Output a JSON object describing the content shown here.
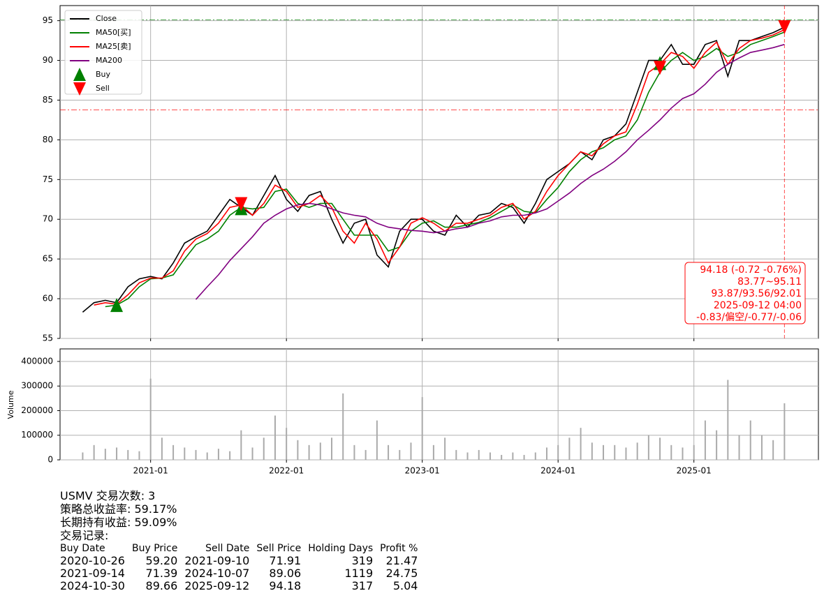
{
  "chart_data": [
    {
      "type": "line",
      "x": [
        "2020-07",
        "2020-08",
        "2020-09",
        "2020-10",
        "2020-11",
        "2020-12",
        "2021-01",
        "2021-02",
        "2021-03",
        "2021-04",
        "2021-05",
        "2021-06",
        "2021-07",
        "2021-08",
        "2021-09",
        "2021-10",
        "2021-11",
        "2021-12",
        "2022-01",
        "2022-02",
        "2022-03",
        "2022-04",
        "2022-05",
        "2022-06",
        "2022-07",
        "2022-08",
        "2022-09",
        "2022-10",
        "2022-11",
        "2022-12",
        "2023-01",
        "2023-02",
        "2023-03",
        "2023-04",
        "2023-05",
        "2023-06",
        "2023-07",
        "2023-08",
        "2023-09",
        "2023-10",
        "2023-11",
        "2023-12",
        "2024-01",
        "2024-02",
        "2024-03",
        "2024-04",
        "2024-05",
        "2024-06",
        "2024-07",
        "2024-08",
        "2024-09",
        "2024-10",
        "2024-11",
        "2024-12",
        "2025-01",
        "2025-02",
        "2025-03",
        "2025-04",
        "2025-05",
        "2025-06",
        "2025-07",
        "2025-08",
        "2025-09"
      ],
      "xlim": [
        "2020-05",
        "2025-12"
      ],
      "ylim": [
        55,
        96.9
      ],
      "yticks": [
        55,
        60,
        65,
        70,
        75,
        80,
        85,
        90,
        95
      ],
      "grid": true,
      "legend": "upper left",
      "series": [
        {
          "name": "Close",
          "color": "#000000",
          "values": [
            58.3,
            59.5,
            59.8,
            59.5,
            61.5,
            62.5,
            62.8,
            62.5,
            64.5,
            67,
            67.8,
            68.5,
            70.5,
            72.5,
            71.5,
            70.5,
            73,
            75.5,
            72.5,
            71,
            73,
            73.5,
            70,
            67,
            69.5,
            70,
            65.5,
            64,
            68.5,
            70,
            70,
            68.5,
            68,
            70.5,
            69,
            70.5,
            70.8,
            72,
            71.5,
            69.5,
            72,
            75,
            76,
            77,
            78.5,
            77.5,
            80,
            80.5,
            82,
            86,
            90,
            90,
            92,
            89.5,
            89.5,
            92,
            92.5,
            88,
            92.5,
            92.5,
            93,
            93.5,
            94.18
          ]
        },
        {
          "name": "MA50[买]",
          "color": "#008000",
          "values": [
            null,
            null,
            59,
            59.2,
            60,
            61.5,
            62.5,
            62.6,
            63,
            65,
            66.8,
            67.5,
            68.5,
            70.5,
            71.5,
            71.3,
            71.5,
            73.5,
            73.8,
            72,
            71.5,
            72,
            72,
            70,
            68,
            68,
            68,
            66,
            66.5,
            68.5,
            69.5,
            69.8,
            69,
            69,
            69.3,
            69.6,
            70.2,
            71,
            71.8,
            71,
            70.8,
            72.5,
            74,
            76,
            77.5,
            78.5,
            79,
            80,
            80.5,
            82.5,
            86,
            88.5,
            90,
            91,
            90,
            90.5,
            91.5,
            90.5,
            91,
            92,
            92.5,
            93,
            93.56
          ]
        },
        {
          "name": "MA25[卖]",
          "color": "#ff0000",
          "values": [
            null,
            59.2,
            59.5,
            59.3,
            60.5,
            62,
            62.6,
            62.6,
            63.5,
            66,
            67.5,
            68.2,
            69.5,
            71.5,
            71.8,
            70.5,
            72,
            74.3,
            73.5,
            71.5,
            72,
            73,
            71.5,
            68.5,
            67,
            69.5,
            67.5,
            64.5,
            66.5,
            69.5,
            70.2,
            69.5,
            68.5,
            69.5,
            69.5,
            70,
            70.5,
            71.5,
            72,
            70,
            71,
            73.5,
            75.5,
            77,
            78.5,
            78,
            79.5,
            80.5,
            81,
            84.5,
            88.5,
            89.5,
            91,
            90.5,
            89,
            91,
            92.3,
            89.5,
            91.5,
            92.5,
            92.8,
            93.2,
            93.87
          ]
        },
        {
          "name": "MA200",
          "color": "#800080",
          "values": [
            null,
            null,
            null,
            null,
            null,
            null,
            null,
            null,
            null,
            null,
            59.9,
            61.5,
            63,
            64.8,
            66.3,
            67.8,
            69.5,
            70.5,
            71.3,
            71.8,
            72,
            71.8,
            71.3,
            70.8,
            70.5,
            70.3,
            69.5,
            69,
            68.8,
            68.6,
            68.5,
            68.3,
            68.5,
            68.8,
            69,
            69.5,
            69.8,
            70.3,
            70.5,
            70.5,
            70.8,
            71.3,
            72.3,
            73.3,
            74.5,
            75.5,
            76.3,
            77.3,
            78.5,
            80,
            81.2,
            82.5,
            84,
            85.2,
            85.8,
            87,
            88.5,
            89.5,
            90.3,
            91,
            91.3,
            91.6,
            92.01
          ]
        }
      ],
      "markers": [
        {
          "name": "Buy",
          "color": "#008000",
          "symbol": "up",
          "x": [
            "2020-10",
            "2021-09",
            "2024-10"
          ],
          "values": [
            59.2,
            71.39,
            89.66
          ]
        },
        {
          "name": "Sell",
          "color": "#ff0000",
          "symbol": "down",
          "x": [
            "2021-09",
            "2024-10",
            "2025-09"
          ],
          "values": [
            71.91,
            89.06,
            94.18
          ]
        }
      ],
      "ref_lines": [
        {
          "value": 95.11,
          "color": "#008000"
        },
        {
          "value": 83.77,
          "color": "#ff0000"
        }
      ],
      "vline": "2025-09",
      "annotation": [
        "94.18 (-0.72 -0.76%)",
        "83.77~95.11",
        "93.87/93.56/92.01",
        "2025-09-12 04:00",
        "-0.83/偏空/-0.77/-0.06"
      ]
    },
    {
      "type": "bar",
      "ylabel": "Volume",
      "color": "#aaaaaa",
      "x": [
        "2020-07",
        "2020-08",
        "2020-09",
        "2020-10",
        "2020-11",
        "2020-12",
        "2021-01",
        "2021-02",
        "2021-03",
        "2021-04",
        "2021-05",
        "2021-06",
        "2021-07",
        "2021-08",
        "2021-09",
        "2021-10",
        "2021-11",
        "2021-12",
        "2022-01",
        "2022-02",
        "2022-03",
        "2022-04",
        "2022-05",
        "2022-06",
        "2022-07",
        "2022-08",
        "2022-09",
        "2022-10",
        "2022-11",
        "2022-12",
        "2023-01",
        "2023-02",
        "2023-03",
        "2023-04",
        "2023-05",
        "2023-06",
        "2023-07",
        "2023-08",
        "2023-09",
        "2023-10",
        "2023-11",
        "2023-12",
        "2024-01",
        "2024-02",
        "2024-03",
        "2024-04",
        "2024-05",
        "2024-06",
        "2024-07",
        "2024-08",
        "2024-09",
        "2024-10",
        "2024-11",
        "2024-12",
        "2025-01",
        "2025-02",
        "2025-03",
        "2025-04",
        "2025-05",
        "2025-06",
        "2025-07",
        "2025-08",
        "2025-09"
      ],
      "values": [
        30000,
        60000,
        45000,
        50000,
        40000,
        35000,
        330000,
        90000,
        60000,
        50000,
        40000,
        30000,
        45000,
        35000,
        120000,
        50000,
        90000,
        180000,
        130000,
        80000,
        60000,
        70000,
        90000,
        270000,
        60000,
        40000,
        160000,
        60000,
        40000,
        70000,
        255000,
        60000,
        90000,
        40000,
        30000,
        40000,
        30000,
        20000,
        30000,
        20000,
        30000,
        50000,
        60000,
        90000,
        130000,
        70000,
        60000,
        60000,
        50000,
        70000,
        100000,
        90000,
        60000,
        50000,
        60000,
        160000,
        120000,
        325000,
        100000,
        160000,
        100000,
        80000,
        230000
      ],
      "xlim": [
        "2020-05",
        "2025-12"
      ],
      "xticks": [
        "2021-01",
        "2022-01",
        "2023-01",
        "2024-01",
        "2025-01"
      ],
      "ylim": [
        0,
        451000
      ],
      "yticks": [
        0,
        100000,
        200000,
        300000,
        400000
      ],
      "grid": true
    }
  ],
  "report": {
    "lines": [
      "USMV 交易次数: 3",
      "策略总收益率: 59.17%",
      "长期持有收益: 59.09%",
      "交易记录:"
    ],
    "columns": [
      "Buy Date",
      "Buy Price",
      "Sell Date",
      "Sell Price",
      "Holding Days",
      "Profit %"
    ],
    "rows": [
      [
        "2020-10-26",
        "59.20",
        "2021-09-10",
        "71.91",
        "319",
        "21.47"
      ],
      [
        "2021-09-14",
        "71.39",
        "2024-10-07",
        "89.06",
        "1119",
        "24.75"
      ],
      [
        "2024-10-30",
        "89.66",
        "2025-09-12",
        "94.18",
        "317",
        "5.04"
      ]
    ]
  }
}
